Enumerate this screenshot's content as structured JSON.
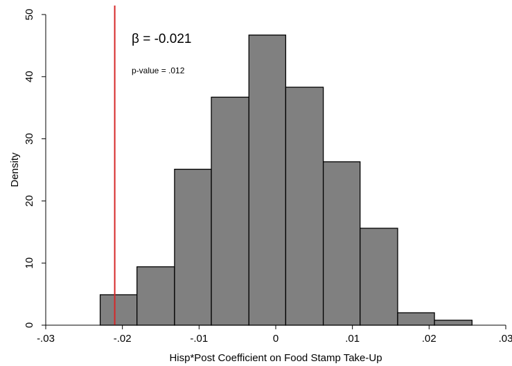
{
  "chart_data": {
    "type": "bar",
    "histogram": true,
    "xlabel": "Hisp*Post Coefficient on Food Stamp Take-Up",
    "ylabel": "Density",
    "xlim": [
      -0.03,
      0.03
    ],
    "ylim": [
      0,
      50
    ],
    "x_ticks": [
      -0.03,
      -0.02,
      -0.01,
      0,
      0.01,
      0.02,
      0.03
    ],
    "x_tick_labels": [
      "-.03",
      "-.02",
      "-.01",
      "0",
      ".01",
      ".02",
      ".03"
    ],
    "y_ticks": [
      0,
      10,
      20,
      30,
      40,
      50
    ],
    "y_tick_labels": [
      "0",
      "10",
      "20",
      "30",
      "40",
      "50"
    ],
    "bins": [
      {
        "start": -0.0229,
        "end": -0.0181,
        "value": 4.9
      },
      {
        "start": -0.0181,
        "end": -0.0132,
        "value": 9.4
      },
      {
        "start": -0.0132,
        "end": -0.0084,
        "value": 25.1
      },
      {
        "start": -0.0084,
        "end": -0.0035,
        "value": 36.7
      },
      {
        "start": -0.0035,
        "end": 0.0013,
        "value": 46.7
      },
      {
        "start": 0.0013,
        "end": 0.0062,
        "value": 38.3
      },
      {
        "start": 0.0062,
        "end": 0.011,
        "value": 26.3
      },
      {
        "start": 0.011,
        "end": 0.0159,
        "value": 15.6
      },
      {
        "start": 0.0159,
        "end": 0.0207,
        "value": 2.0
      },
      {
        "start": 0.0207,
        "end": 0.0256,
        "value": 0.8
      }
    ],
    "reference_line": {
      "x": -0.021,
      "color": "#d62728"
    },
    "annotations": {
      "beta": "β = -0.021",
      "pvalue": "p-value = .012"
    },
    "bar_color": "#808080",
    "bar_edge_color": "#000000",
    "grid": false
  }
}
